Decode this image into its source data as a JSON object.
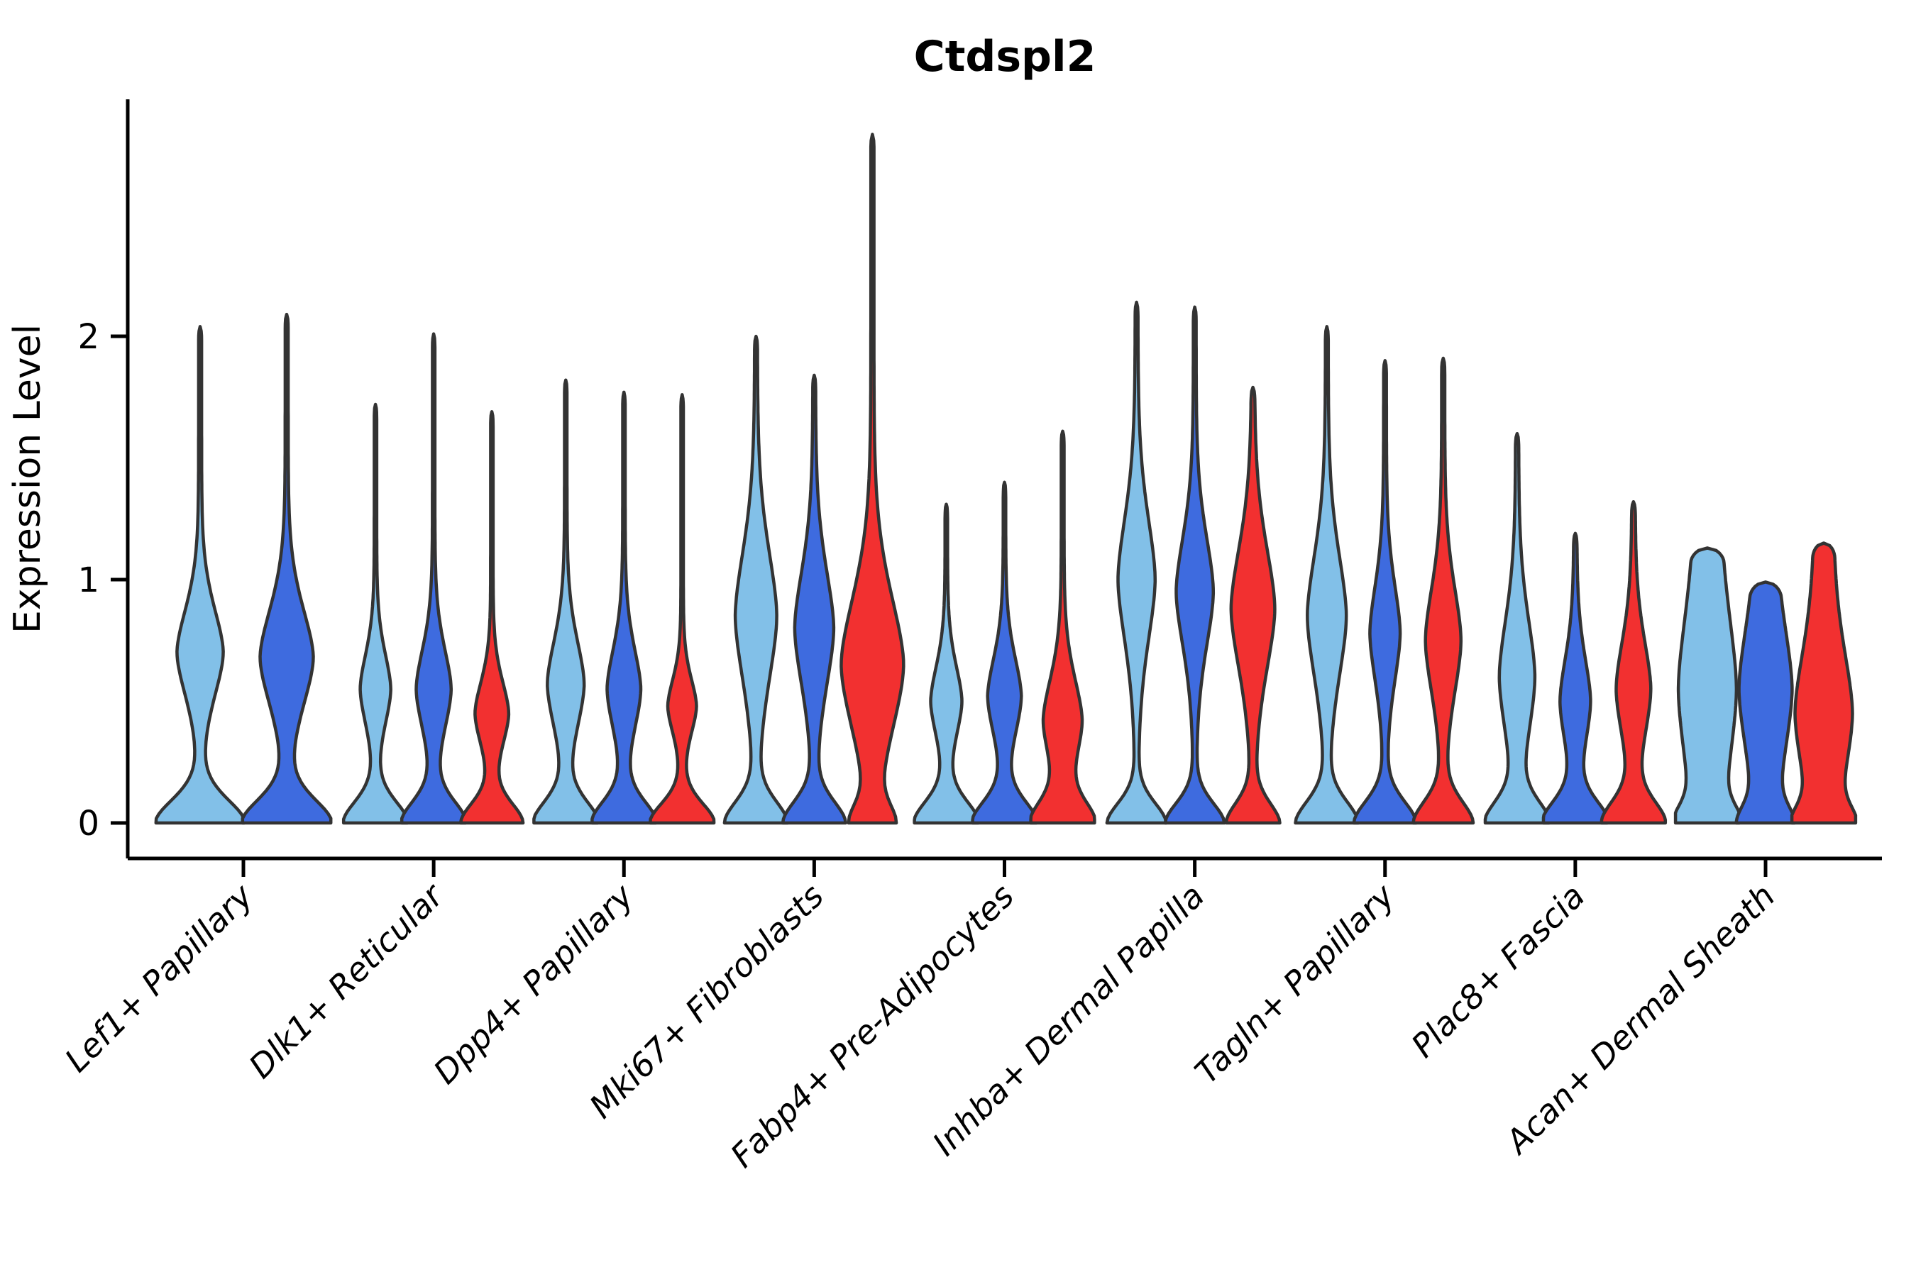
{
  "chart_data": {
    "type": "violin",
    "title": "Ctdspl2",
    "xlabel": "",
    "ylabel": "Expression Level",
    "yticks": [
      0,
      1,
      2
    ],
    "ylim": [
      -0.15,
      3.1
    ],
    "grid": false,
    "legend": "none",
    "x_tick_rotation_deg": 45,
    "split_colors": {
      "light_blue": "#82C0E8",
      "dark_blue": "#3E6BDF",
      "red": "#F23030"
    },
    "outline_color": "#333333",
    "categories": [
      {
        "label": "Lef1+ Papillary",
        "violins": [
          {
            "split": "light_blue",
            "max_expression": 2.04,
            "mode": 0.7,
            "density_profile": {
              "base_w": 1.0,
              "base_s": 0.14,
              "bulge_c": 0.7,
              "bulge_w": 0.5,
              "bulge_s": 0.27,
              "spike_w": 0.035,
              "blunt": false
            }
          },
          {
            "split": "dark_blue",
            "max_expression": 2.09,
            "mode": 0.68,
            "density_profile": {
              "base_w": 1.0,
              "base_s": 0.14,
              "bulge_c": 0.68,
              "bulge_w": 0.58,
              "bulge_s": 0.3,
              "spike_w": 0.035,
              "blunt": false
            }
          }
        ]
      },
      {
        "label": "Dlk1+ Reticular",
        "violins": [
          {
            "split": "light_blue",
            "max_expression": 1.72,
            "mode": 0.55,
            "density_profile": {
              "base_w": 1.0,
              "base_s": 0.13,
              "bulge_c": 0.55,
              "bulge_w": 0.45,
              "bulge_s": 0.22,
              "spike_w": 0.04,
              "blunt": false
            }
          },
          {
            "split": "dark_blue",
            "max_expression": 2.01,
            "mode": 0.55,
            "density_profile": {
              "base_w": 1.0,
              "base_s": 0.13,
              "bulge_c": 0.55,
              "bulge_w": 0.52,
              "bulge_s": 0.25,
              "spike_w": 0.04,
              "blunt": false
            }
          },
          {
            "split": "red",
            "max_expression": 1.69,
            "mode": 0.45,
            "density_profile": {
              "base_w": 0.95,
              "base_s": 0.12,
              "bulge_c": 0.45,
              "bulge_w": 0.5,
              "bulge_s": 0.2,
              "spike_w": 0.04,
              "blunt": false
            }
          }
        ]
      },
      {
        "label": "Dpp4+ Papillary",
        "violins": [
          {
            "split": "light_blue",
            "max_expression": 1.82,
            "mode": 0.57,
            "density_profile": {
              "base_w": 1.0,
              "base_s": 0.13,
              "bulge_c": 0.57,
              "bulge_w": 0.55,
              "bulge_s": 0.27,
              "spike_w": 0.04,
              "blunt": false
            }
          },
          {
            "split": "dark_blue",
            "max_expression": 1.77,
            "mode": 0.55,
            "density_profile": {
              "base_w": 1.0,
              "base_s": 0.13,
              "bulge_c": 0.55,
              "bulge_w": 0.5,
              "bulge_s": 0.25,
              "spike_w": 0.04,
              "blunt": false
            }
          },
          {
            "split": "red",
            "max_expression": 1.76,
            "mode": 0.48,
            "density_profile": {
              "base_w": 1.0,
              "base_s": 0.12,
              "bulge_c": 0.48,
              "bulge_w": 0.42,
              "bulge_s": 0.17,
              "spike_w": 0.04,
              "blunt": false
            }
          }
        ]
      },
      {
        "label": "Mki67+ Fibroblasts",
        "violins": [
          {
            "split": "light_blue",
            "max_expression": 2.0,
            "mode": 0.85,
            "density_profile": {
              "base_w": 0.95,
              "base_s": 0.13,
              "bulge_c": 0.85,
              "bulge_w": 0.62,
              "bulge_s": 0.4,
              "spike_w": 0.045,
              "blunt": false
            }
          },
          {
            "split": "dark_blue",
            "max_expression": 1.84,
            "mode": 0.8,
            "density_profile": {
              "base_w": 0.95,
              "base_s": 0.13,
              "bulge_c": 0.8,
              "bulge_w": 0.58,
              "bulge_s": 0.36,
              "spike_w": 0.045,
              "blunt": false
            }
          },
          {
            "split": "red",
            "max_expression": 2.83,
            "mode": 0.65,
            "density_profile": {
              "base_w": 0.6,
              "base_s": 0.11,
              "bulge_c": 0.65,
              "bulge_w": 0.95,
              "bulge_s": 0.42,
              "spike_w": 0.05,
              "blunt": false
            }
          }
        ]
      },
      {
        "label": "Fabp4+ Pre-Adipocytes",
        "violins": [
          {
            "split": "light_blue",
            "max_expression": 1.31,
            "mode": 0.5,
            "density_profile": {
              "base_w": 1.0,
              "base_s": 0.13,
              "bulge_c": 0.5,
              "bulge_w": 0.46,
              "bulge_s": 0.22,
              "spike_w": 0.04,
              "blunt": false
            }
          },
          {
            "split": "dark_blue",
            "max_expression": 1.4,
            "mode": 0.52,
            "density_profile": {
              "base_w": 1.0,
              "base_s": 0.13,
              "bulge_c": 0.52,
              "bulge_w": 0.5,
              "bulge_s": 0.24,
              "spike_w": 0.04,
              "blunt": false
            }
          },
          {
            "split": "red",
            "max_expression": 1.61,
            "mode": 0.42,
            "density_profile": {
              "base_w": 0.95,
              "base_s": 0.13,
              "bulge_c": 0.42,
              "bulge_w": 0.58,
              "bulge_s": 0.26,
              "spike_w": 0.045,
              "blunt": false
            }
          }
        ]
      },
      {
        "label": "Inhba+ Dermal Papilla",
        "violins": [
          {
            "split": "light_blue",
            "max_expression": 2.14,
            "mode": 1.0,
            "density_profile": {
              "base_w": 0.9,
              "base_s": 0.12,
              "bulge_c": 1.0,
              "bulge_w": 0.55,
              "bulge_s": 0.38,
              "spike_w": 0.045,
              "blunt": false
            }
          },
          {
            "split": "dark_blue",
            "max_expression": 2.12,
            "mode": 0.95,
            "density_profile": {
              "base_w": 0.9,
              "base_s": 0.12,
              "bulge_c": 0.95,
              "bulge_w": 0.55,
              "bulge_s": 0.34,
              "spike_w": 0.045,
              "blunt": false
            }
          },
          {
            "split": "red",
            "max_expression": 1.79,
            "mode": 0.88,
            "density_profile": {
              "base_w": 0.8,
              "base_s": 0.12,
              "bulge_c": 0.88,
              "bulge_w": 0.65,
              "bulge_s": 0.38,
              "spike_w": 0.05,
              "blunt": false
            }
          }
        ]
      },
      {
        "label": "Tagln+ Papillary",
        "violins": [
          {
            "split": "light_blue",
            "max_expression": 2.04,
            "mode": 0.85,
            "density_profile": {
              "base_w": 0.95,
              "base_s": 0.13,
              "bulge_c": 0.85,
              "bulge_w": 0.58,
              "bulge_s": 0.38,
              "spike_w": 0.045,
              "blunt": false
            }
          },
          {
            "split": "dark_blue",
            "max_expression": 1.9,
            "mode": 0.78,
            "density_profile": {
              "base_w": 0.95,
              "base_s": 0.13,
              "bulge_c": 0.78,
              "bulge_w": 0.44,
              "bulge_s": 0.3,
              "spike_w": 0.045,
              "blunt": false
            }
          },
          {
            "split": "red",
            "max_expression": 1.91,
            "mode": 0.75,
            "density_profile": {
              "base_w": 0.9,
              "base_s": 0.13,
              "bulge_c": 0.75,
              "bulge_w": 0.52,
              "bulge_s": 0.33,
              "spike_w": 0.05,
              "blunt": false
            }
          }
        ]
      },
      {
        "label": "Plac8+ Fascia",
        "violins": [
          {
            "split": "light_blue",
            "max_expression": 1.6,
            "mode": 0.6,
            "density_profile": {
              "base_w": 0.95,
              "base_s": 0.13,
              "bulge_c": 0.6,
              "bulge_w": 0.52,
              "bulge_s": 0.36,
              "spike_w": 0.05,
              "blunt": false
            }
          },
          {
            "split": "dark_blue",
            "max_expression": 1.19,
            "mode": 0.5,
            "density_profile": {
              "base_w": 1.0,
              "base_s": 0.13,
              "bulge_c": 0.5,
              "bulge_w": 0.44,
              "bulge_s": 0.27,
              "spike_w": 0.05,
              "blunt": false
            }
          },
          {
            "split": "red",
            "max_expression": 1.32,
            "mode": 0.55,
            "density_profile": {
              "base_w": 0.95,
              "base_s": 0.13,
              "bulge_c": 0.55,
              "bulge_w": 0.5,
              "bulge_s": 0.3,
              "spike_w": 0.055,
              "blunt": false
            }
          }
        ]
      },
      {
        "label": "Acan+ Dermal Sheath",
        "violins": [
          {
            "split": "light_blue",
            "max_expression": 1.13,
            "mode": 0.45,
            "density_profile": {
              "base_w": 0.6,
              "base_s": 0.1,
              "bulge_c": 0.55,
              "bulge_w": 0.55,
              "bulge_s": 0.45,
              "spike_w": 0.38,
              "blunt": true
            }
          },
          {
            "split": "dark_blue",
            "max_expression": 0.99,
            "mode": 0.55,
            "density_profile": {
              "base_w": 0.55,
              "base_s": 0.1,
              "bulge_c": 0.55,
              "bulge_w": 0.55,
              "bulge_s": 0.38,
              "spike_w": 0.3,
              "blunt": true
            }
          },
          {
            "split": "red",
            "max_expression": 1.15,
            "mode": 0.48,
            "density_profile": {
              "base_w": 0.6,
              "base_s": 0.1,
              "bulge_c": 0.45,
              "bulge_w": 0.62,
              "bulge_s": 0.38,
              "spike_w": 0.3,
              "blunt": true
            }
          }
        ]
      }
    ]
  }
}
